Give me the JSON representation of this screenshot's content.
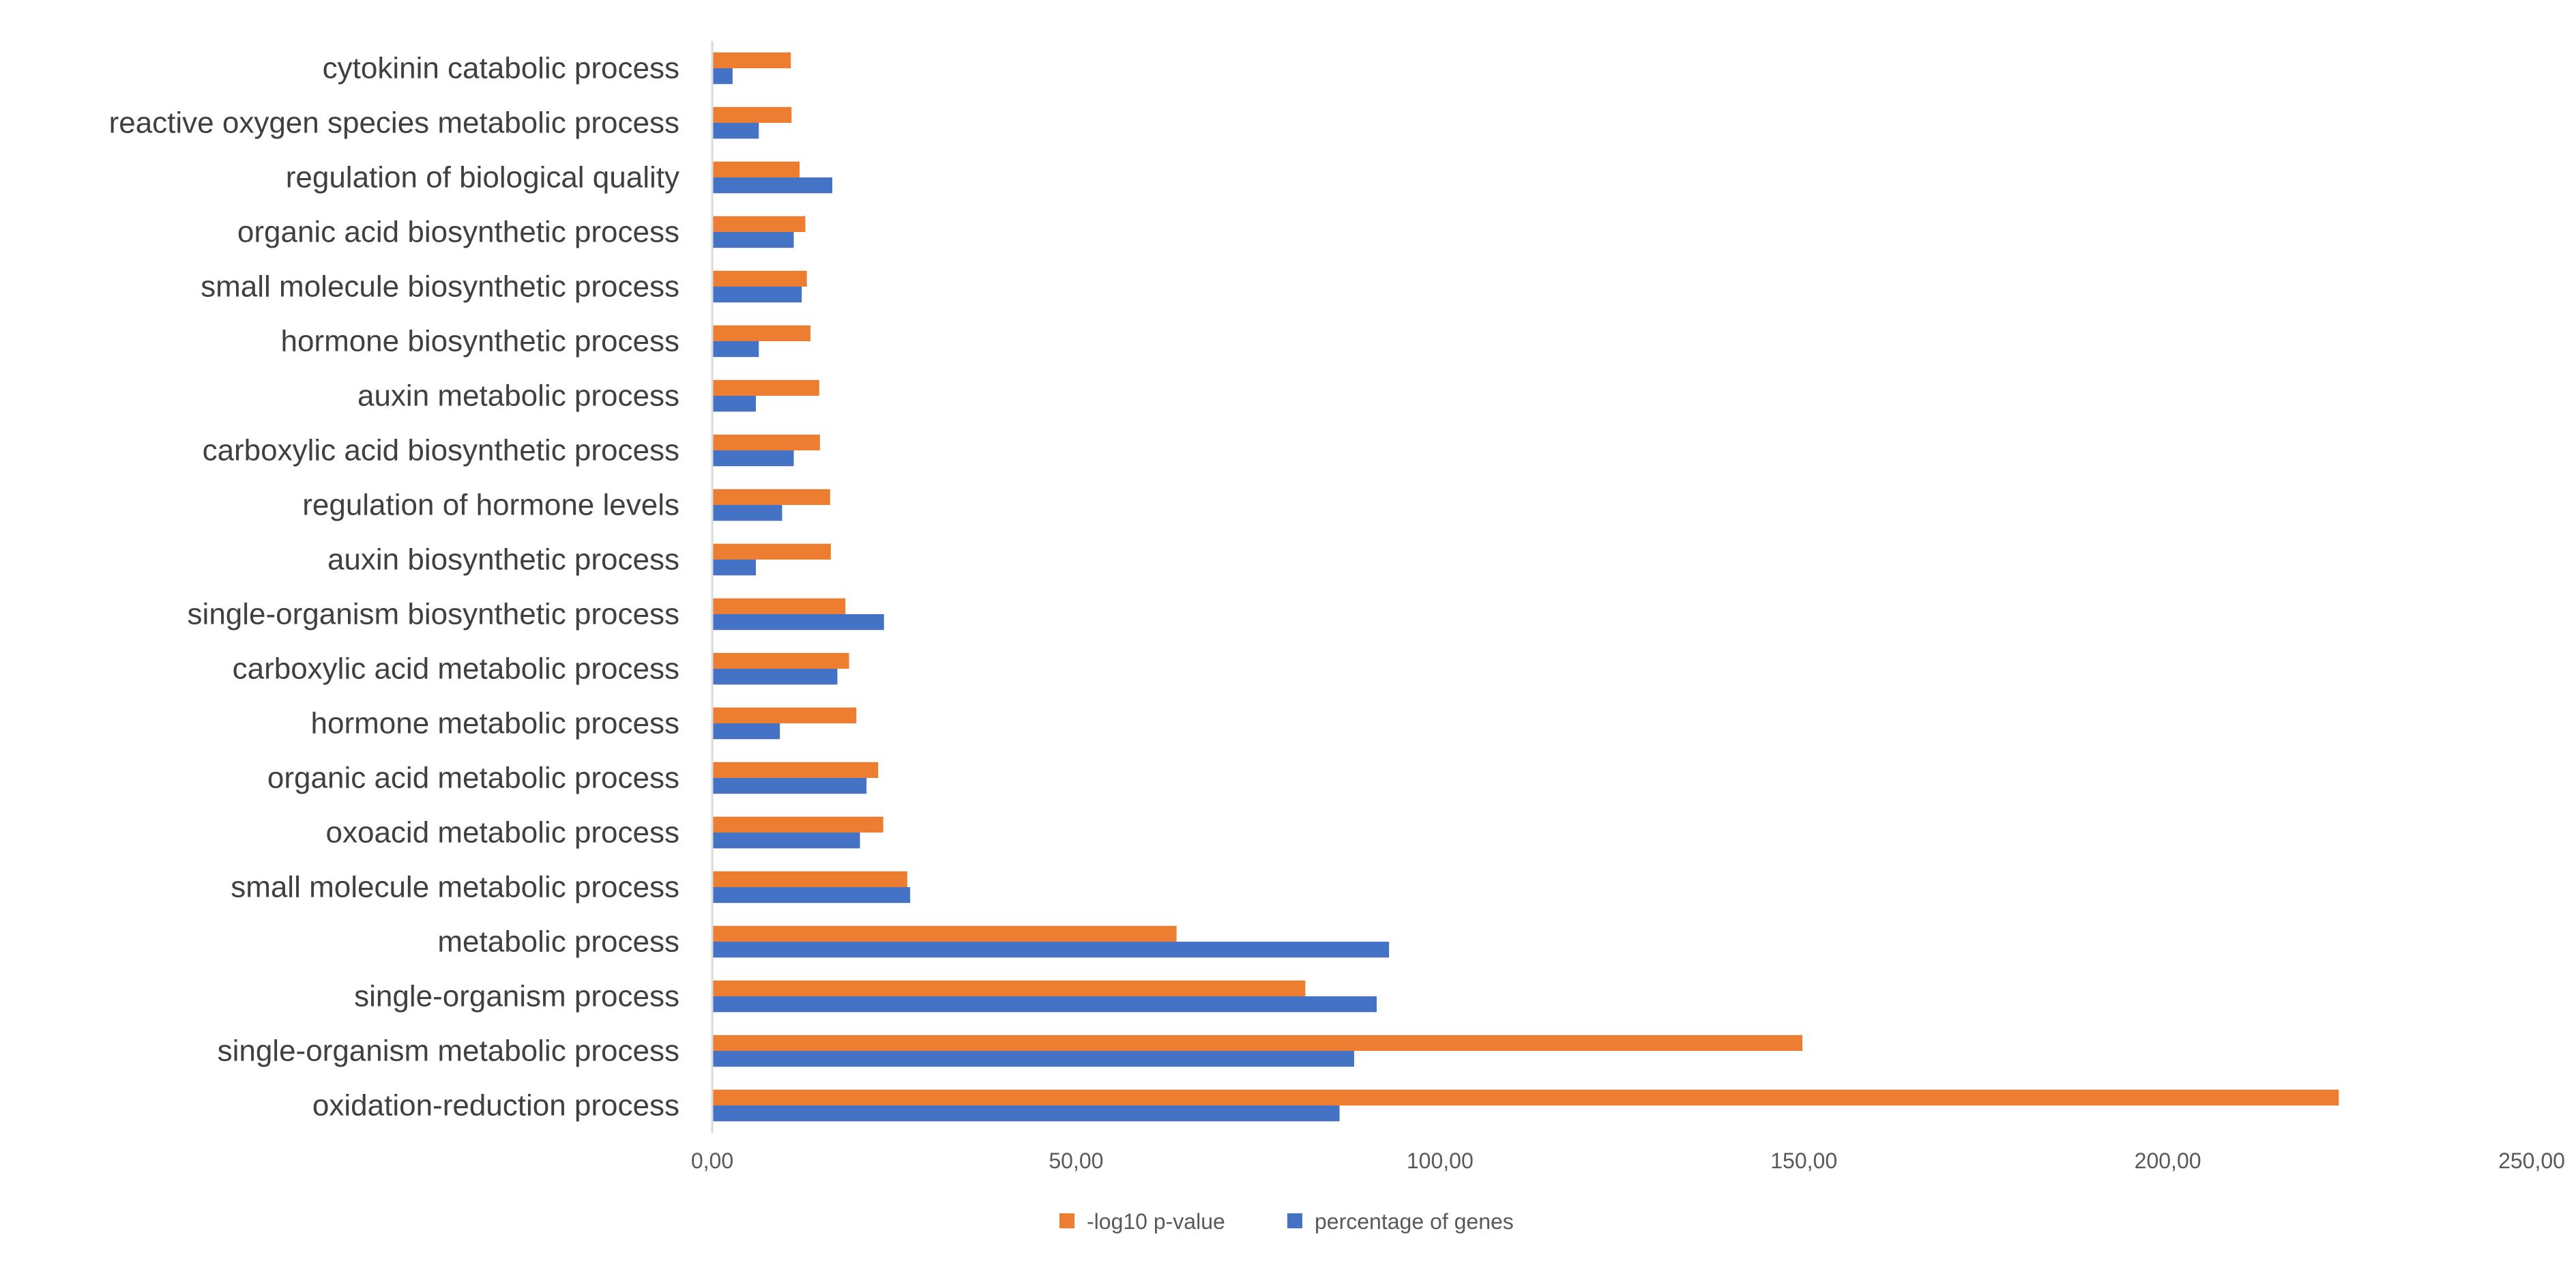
{
  "chart_data": {
    "type": "bar",
    "orientation": "horizontal",
    "title": "",
    "xlabel": "",
    "ylabel": "",
    "xlim": [
      0,
      250
    ],
    "x_ticks": [
      "0,00",
      "50,00",
      "100,00",
      "150,00",
      "200,00",
      "250,00"
    ],
    "grid": false,
    "legend_position": "bottom",
    "categories": [
      "oxidation-reduction process",
      "single-organism metabolic process",
      "single-organism process",
      "metabolic process",
      "small molecule metabolic process",
      "oxoacid metabolic process",
      "organic acid metabolic process",
      "hormone metabolic process",
      "carboxylic acid metabolic process",
      "single-organism biosynthetic process",
      "auxin biosynthetic process",
      "regulation of hormone levels",
      "carboxylic acid biosynthetic process",
      "auxin metabolic process",
      "hormone biosynthetic process",
      "small molecule biosynthetic process",
      "organic acid biosynthetic process",
      "regulation of biological quality",
      "reactive oxygen species metabolic process",
      "cytokinin catabolic process"
    ],
    "series": [
      {
        "name": "-log10 p-value",
        "color": "#ED7D31",
        "values": [
          223.5,
          149.8,
          81.5,
          63.8,
          26.8,
          23.5,
          22.8,
          19.8,
          18.8,
          18.3,
          16.3,
          16.2,
          14.8,
          14.7,
          13.5,
          13.0,
          12.8,
          12.0,
          10.9,
          10.8
        ]
      },
      {
        "name": "percentage of genes",
        "color": "#4472C4",
        "values": [
          86.2,
          88.2,
          91.3,
          93.0,
          27.2,
          20.3,
          21.2,
          9.3,
          17.2,
          23.6,
          6.0,
          9.6,
          11.2,
          6.0,
          6.4,
          12.3,
          11.2,
          16.5,
          6.4,
          2.8
        ]
      }
    ]
  }
}
